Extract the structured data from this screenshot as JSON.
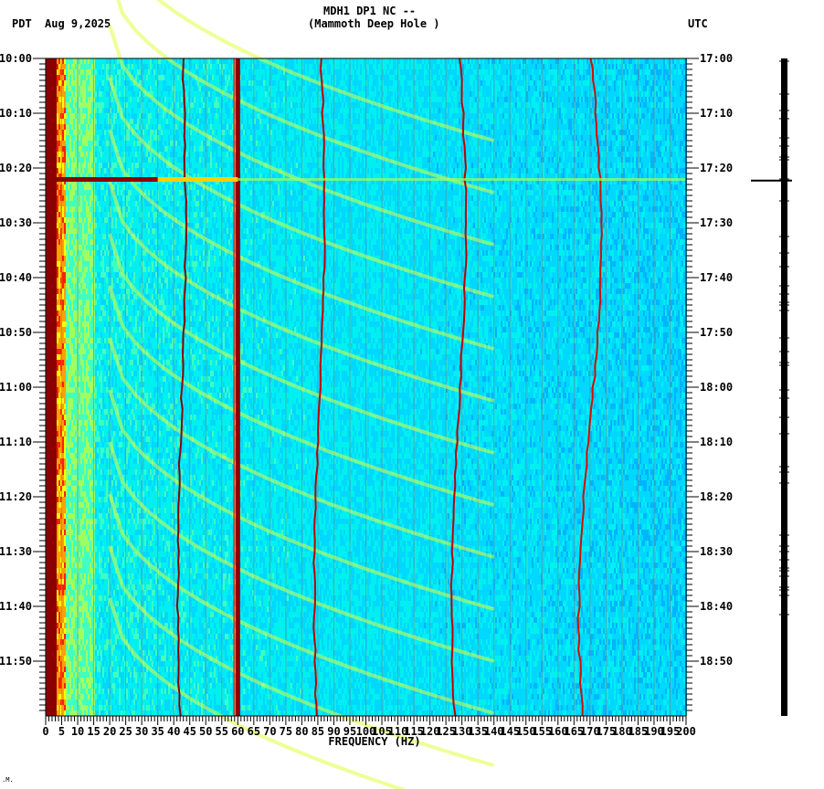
{
  "header": {
    "left_tz": "PDT",
    "date": "Aug 9,2025",
    "station_line": "MDH1 DP1 NC --",
    "station_name": "(Mammoth Deep Hole )",
    "right_tz": "UTC"
  },
  "footer_mark": ".M.",
  "colors": {
    "background_low": "#1e90ff",
    "mid_cyan": "#00e5ff",
    "mid_green": "#7fff7f",
    "mid_yellow": "#ffff00",
    "high_red": "#ff2000",
    "max_darkred": "#8b0000",
    "grid": "#808080",
    "trace": "#000000"
  },
  "chart_data": {
    "type": "heatmap",
    "title": "MDH1 DP1 NC -- (Mammoth Deep Hole )",
    "subtitle": "Aug 9,2025",
    "xlabel": "FREQUENCY (HZ)",
    "ylabel_left": "PDT",
    "ylabel_right": "UTC",
    "xlim": [
      0,
      200
    ],
    "x_ticks": [
      0,
      5,
      10,
      15,
      20,
      25,
      30,
      35,
      40,
      45,
      50,
      55,
      60,
      65,
      70,
      75,
      80,
      85,
      90,
      95,
      100,
      105,
      110,
      115,
      120,
      125,
      130,
      135,
      140,
      145,
      150,
      155,
      160,
      165,
      170,
      175,
      180,
      185,
      190,
      195,
      200
    ],
    "y_ticks_left": [
      "10:00",
      "10:10",
      "10:20",
      "10:30",
      "10:40",
      "10:50",
      "11:00",
      "11:10",
      "11:20",
      "11:30",
      "11:40",
      "11:50"
    ],
    "y_ticks_right": [
      "17:00",
      "17:10",
      "17:20",
      "17:30",
      "17:40",
      "17:50",
      "18:00",
      "18:10",
      "18:20",
      "18:30",
      "18:40",
      "18:50"
    ],
    "time_range_minutes": 120,
    "grid": true,
    "features": [
      {
        "name": "low-frequency energy band",
        "freq_hz": [
          0,
          3
        ],
        "intensity": "max"
      },
      {
        "name": "powerline 60 Hz",
        "freq_hz": 60,
        "intensity": "max"
      },
      {
        "name": "wandering tone ~42 Hz",
        "freq_hz_range": [
          41,
          44
        ],
        "intensity": "high"
      },
      {
        "name": "wandering tone ~85 Hz",
        "freq_hz_range": [
          83,
          87
        ],
        "intensity": "high"
      },
      {
        "name": "wandering tone ~128 Hz",
        "freq_hz_range": [
          125,
          131
        ],
        "intensity": "high"
      },
      {
        "name": "wandering tone ~170 Hz",
        "freq_hz_range": [
          166,
          174
        ],
        "intensity": "high"
      },
      {
        "name": "broadband transient",
        "time": "10:22",
        "freq_hz_range": [
          0,
          60
        ],
        "intensity": "max"
      },
      {
        "name": "curved harmonic sweeps",
        "freq_hz_range": [
          20,
          130
        ],
        "intensity": "medium"
      }
    ]
  }
}
